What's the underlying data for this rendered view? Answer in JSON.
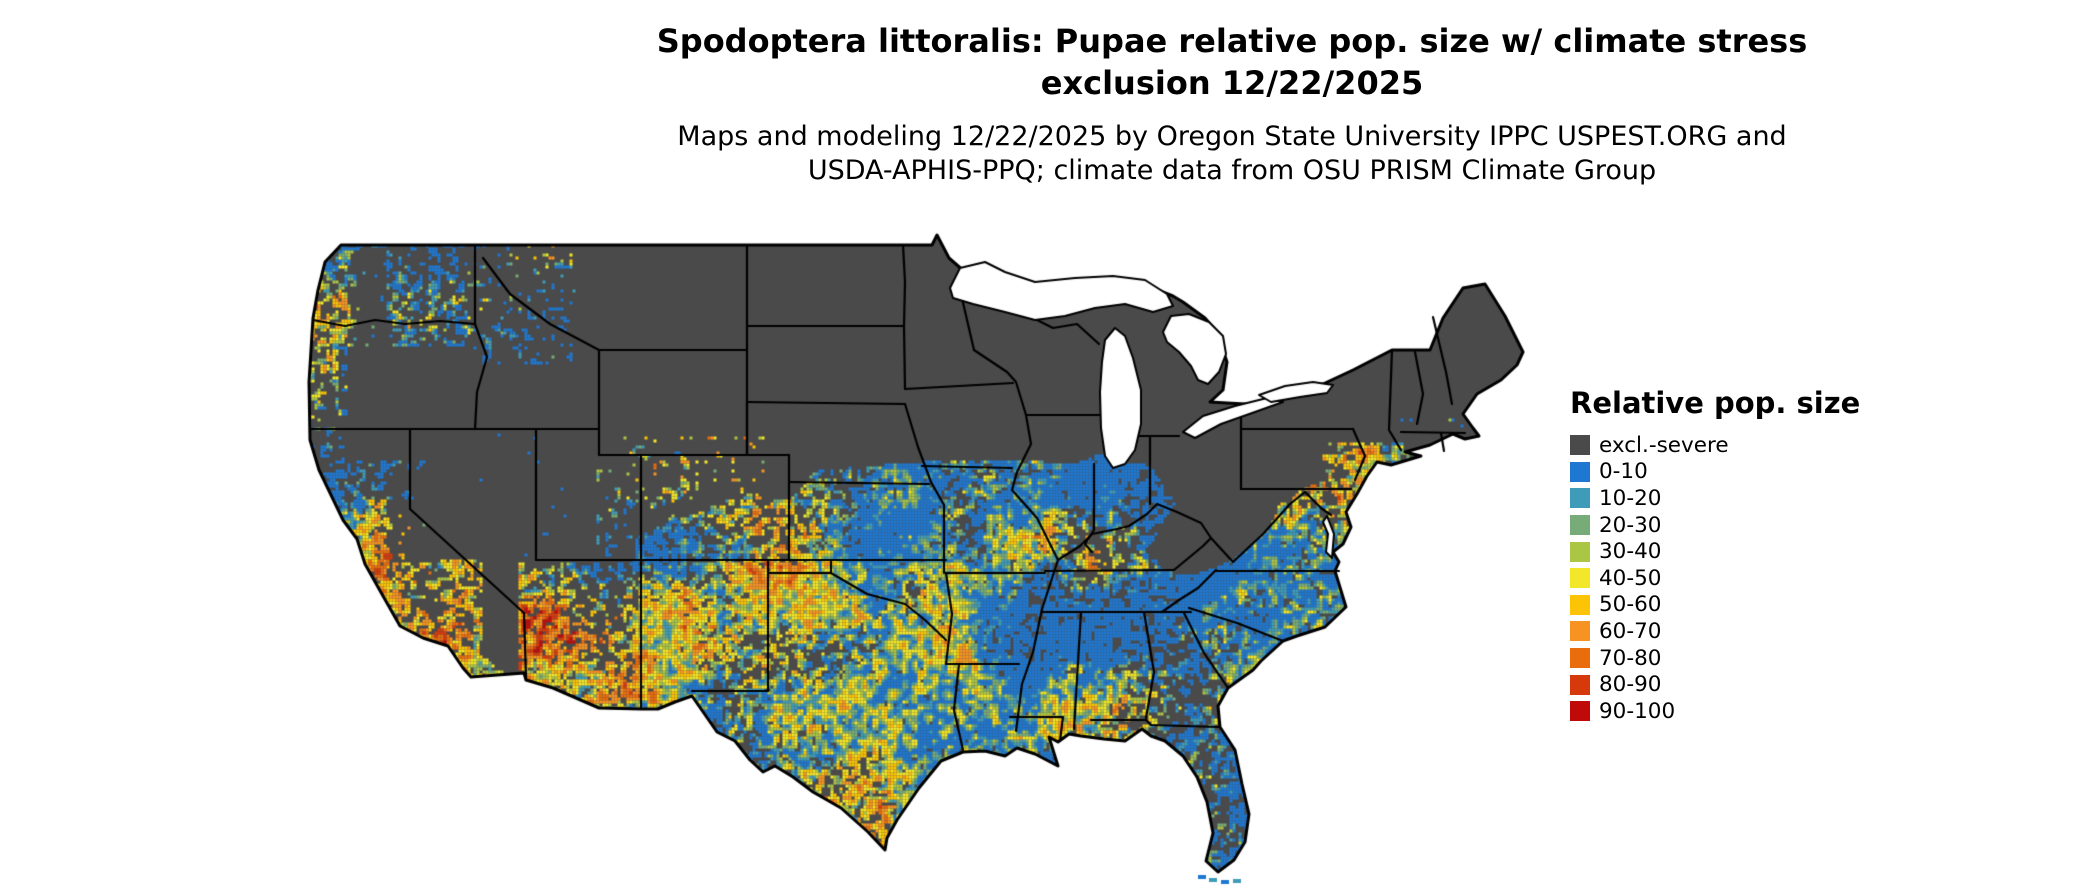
{
  "title": {
    "line1": "Spodoptera littoralis: Pupae relative pop. size w/ climate stress",
    "line2": "exclusion 12/22/2025"
  },
  "subtitle": {
    "line1": "Maps and modeling 12/22/2025 by Oregon State University IPPC USPEST.ORG and",
    "line2": "USDA-APHIS-PPQ; climate data from OSU PRISM Climate Group"
  },
  "legend": {
    "title": "Relative pop. size",
    "items": [
      {
        "label": "excl.-severe",
        "color": "#4A4A4A"
      },
      {
        "label": "0-10",
        "color": "#1E78D2"
      },
      {
        "label": "10-20",
        "color": "#3E9CB8"
      },
      {
        "label": "20-30",
        "color": "#77AB77"
      },
      {
        "label": "30-40",
        "color": "#ABC545"
      },
      {
        "label": "40-50",
        "color": "#F2E729"
      },
      {
        "label": "50-60",
        "color": "#FCC405"
      },
      {
        "label": "60-70",
        "color": "#F69322"
      },
      {
        "label": "70-80",
        "color": "#E96D0D"
      },
      {
        "label": "80-90",
        "color": "#D63A0A"
      },
      {
        "label": "90-100",
        "color": "#C00A0A"
      }
    ]
  },
  "map": {
    "region": "Contiguous United States",
    "excluded_color": "#4A4A4A",
    "background": "#FFFFFF",
    "border_color": "#000000"
  }
}
